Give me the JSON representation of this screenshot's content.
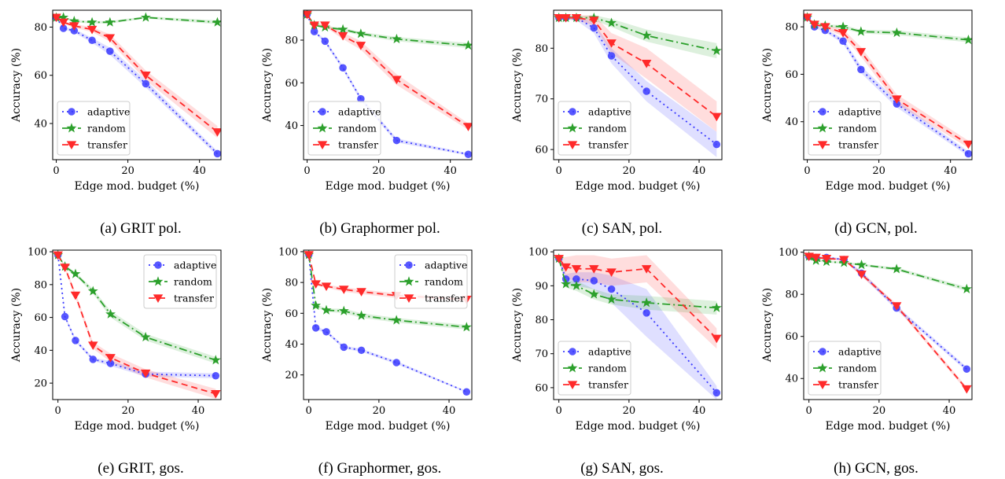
{
  "colors": {
    "adaptive": "#3b3bff",
    "random": "#2ca02c",
    "transfer": "#ff2a2a"
  },
  "legend_labels": [
    "adaptive",
    "random",
    "transfer"
  ],
  "chart_data": [
    {
      "type": "line",
      "caption": "(a) GRIT pol.",
      "xlabel": "Edge mod. budget (%)",
      "ylabel": "Accuracy (%)",
      "xlim": [
        -1,
        46
      ],
      "ylim": [
        25,
        87
      ],
      "xticks": [
        0,
        20,
        40
      ],
      "yticks": [
        40,
        60,
        80
      ],
      "legend_loc": "lower-left",
      "x": [
        0,
        2,
        5,
        10,
        15,
        25,
        45
      ],
      "series": [
        {
          "name": "adaptive",
          "values": [
            84,
            79.5,
            78.5,
            74.5,
            70,
            56.5,
            27.5
          ],
          "band": [
            0,
            0.5,
            0.8,
            1,
            1.5,
            1.5,
            1
          ]
        },
        {
          "name": "random",
          "values": [
            84,
            84,
            82.5,
            82,
            82,
            84,
            82
          ],
          "band": [
            0,
            0.3,
            0.5,
            0.5,
            0.5,
            0.5,
            0.8
          ]
        },
        {
          "name": "transfer",
          "values": [
            84,
            82,
            80.5,
            79,
            75.5,
            60,
            36.5
          ],
          "band": [
            0,
            0.5,
            0.8,
            1,
            1.5,
            2,
            2.5
          ]
        }
      ]
    },
    {
      "type": "line",
      "caption": "(b) Graphormer pol.",
      "xlabel": "Edge mod. budget (%)",
      "ylabel": "Accuracy (%)",
      "xlim": [
        -1,
        46
      ],
      "ylim": [
        24,
        94
      ],
      "xticks": [
        0,
        20,
        40
      ],
      "yticks": [
        40,
        60,
        80
      ],
      "legend_loc": "lower-left",
      "x": [
        0,
        2,
        5,
        10,
        15,
        25,
        45
      ],
      "series": [
        {
          "name": "adaptive",
          "values": [
            92,
            84,
            79.5,
            67,
            52.5,
            33,
            26.5
          ],
          "band": [
            0,
            0.5,
            0.8,
            1,
            1,
            1,
            0.5
          ]
        },
        {
          "name": "random",
          "values": [
            92,
            87,
            86,
            85,
            83,
            80.5,
            77.5
          ],
          "band": [
            0,
            0.5,
            0.5,
            0.8,
            0.8,
            1,
            1.2
          ]
        },
        {
          "name": "transfer",
          "values": [
            92,
            87,
            87,
            82,
            77.5,
            61.5,
            39.5
          ],
          "band": [
            0,
            0.5,
            0.8,
            1.5,
            2,
            2.5,
            1.5
          ]
        }
      ]
    },
    {
      "type": "line",
      "caption": "(c) SAN, pol.",
      "xlabel": "Edge mod. budget (%)",
      "ylabel": "Accuracy (%)",
      "xlim": [
        -1.5,
        46.5
      ],
      "ylim": [
        58,
        87.5
      ],
      "xticks": [
        0,
        20,
        40
      ],
      "yticks": [
        60,
        70,
        80
      ],
      "legend_loc": "lower-left",
      "x": [
        0,
        2,
        5,
        10,
        15,
        25,
        45
      ],
      "series": [
        {
          "name": "adaptive",
          "values": [
            86,
            86,
            86,
            84,
            78.5,
            71.5,
            61
          ],
          "band": [
            0,
            0.3,
            0.5,
            1,
            1.5,
            2,
            2.5
          ]
        },
        {
          "name": "random",
          "values": [
            86,
            86,
            86,
            86,
            85,
            82.5,
            79.5
          ],
          "band": [
            0,
            0.3,
            0.3,
            0.5,
            0.8,
            1.2,
            1.5
          ]
        },
        {
          "name": "transfer",
          "values": [
            86,
            86,
            86,
            85.5,
            81,
            77,
            66.5
          ],
          "band": [
            0,
            0.3,
            0.5,
            1,
            2,
            3,
            3
          ]
        }
      ]
    },
    {
      "type": "line",
      "caption": "(d) GCN, pol.",
      "xlabel": "Edge mod. budget (%)",
      "ylabel": "Accuracy (%)",
      "xlim": [
        -1,
        46
      ],
      "ylim": [
        24,
        87
      ],
      "xticks": [
        0,
        20,
        40
      ],
      "yticks": [
        40,
        60,
        80
      ],
      "legend_loc": "lower-left",
      "x": [
        0,
        2,
        5,
        10,
        15,
        25,
        45
      ],
      "series": [
        {
          "name": "adaptive",
          "values": [
            84,
            80,
            78.5,
            74,
            62,
            47.5,
            26.5
          ],
          "band": [
            0,
            0.5,
            0.8,
            1,
            1.5,
            1.5,
            1
          ]
        },
        {
          "name": "random",
          "values": [
            84,
            81,
            80.5,
            80,
            78,
            77.5,
            74.5
          ],
          "band": [
            0,
            0.5,
            0.5,
            0.8,
            0.8,
            1,
            1
          ]
        },
        {
          "name": "transfer",
          "values": [
            84,
            81,
            80,
            77.5,
            69.5,
            49.5,
            30.5
          ],
          "band": [
            0,
            0.5,
            0.8,
            1.5,
            2,
            2,
            1.5
          ]
        }
      ]
    },
    {
      "type": "line",
      "caption": "(e) GRIT, gos.",
      "xlabel": "Edge mod. budget (%)",
      "ylabel": "Accuracy (%)",
      "xlim": [
        -1.5,
        46.5
      ],
      "ylim": [
        10,
        101
      ],
      "xticks": [
        0,
        20,
        40
      ],
      "yticks": [
        20,
        40,
        60,
        80,
        100
      ],
      "legend_loc": "upper-right",
      "x": [
        0,
        2,
        5,
        10,
        15,
        25,
        45
      ],
      "series": [
        {
          "name": "adaptive",
          "values": [
            98,
            60.5,
            46,
            34.5,
            32,
            25.5,
            24.5
          ],
          "band": [
            0,
            1,
            1,
            1,
            1.5,
            1.5,
            1.5
          ]
        },
        {
          "name": "random",
          "values": [
            98,
            91,
            86.5,
            76,
            62,
            48,
            34
          ],
          "band": [
            0,
            1,
            1,
            1.5,
            2,
            2,
            2
          ]
        },
        {
          "name": "transfer",
          "values": [
            98,
            90.5,
            73.5,
            43,
            35.5,
            26,
            13.5
          ],
          "band": [
            0,
            1,
            1.5,
            2,
            2.5,
            2.5,
            3
          ]
        }
      ]
    },
    {
      "type": "line",
      "caption": "(f) Graphormer, gos.",
      "xlabel": "Edge mod. budget (%)",
      "ylabel": "Accuracy (%)",
      "xlim": [
        -1.5,
        46.5
      ],
      "ylim": [
        4,
        101
      ],
      "xticks": [
        0,
        20,
        40
      ],
      "yticks": [
        20,
        40,
        60,
        80,
        100
      ],
      "legend_loc": "upper-right",
      "x": [
        0,
        2,
        5,
        10,
        15,
        25,
        45
      ],
      "series": [
        {
          "name": "adaptive",
          "values": [
            98,
            50.5,
            48,
            38,
            36,
            28,
            9
          ],
          "band": [
            0,
            1,
            1,
            1,
            1,
            1,
            0.5
          ]
        },
        {
          "name": "random",
          "values": [
            98,
            65,
            62,
            61.5,
            58.5,
            55.5,
            51
          ],
          "band": [
            0,
            1,
            1,
            1.5,
            1.5,
            1.5,
            1.5
          ]
        },
        {
          "name": "transfer",
          "values": [
            98,
            79,
            77.5,
            75.5,
            74,
            71.5,
            69
          ],
          "band": [
            0,
            1,
            1,
            1.5,
            1.5,
            1.5,
            1.5
          ]
        }
      ]
    },
    {
      "type": "line",
      "caption": "(g) SAN, gos.",
      "xlabel": "Edge mod. budget (%)",
      "ylabel": "Accuracy (%)",
      "xlim": [
        -1.5,
        46.5
      ],
      "ylim": [
        56.5,
        100.5
      ],
      "xticks": [
        0,
        20,
        40
      ],
      "yticks": [
        60,
        70,
        80,
        90,
        100
      ],
      "legend_loc": "lower-left",
      "x": [
        0,
        2,
        5,
        10,
        15,
        25,
        45
      ],
      "series": [
        {
          "name": "adaptive",
          "values": [
            98,
            92,
            92,
            91.5,
            89,
            82,
            58.5
          ],
          "band": [
            0,
            1.5,
            2,
            2.5,
            4,
            7,
            2
          ]
        },
        {
          "name": "random",
          "values": [
            98,
            90.5,
            90,
            87.5,
            86,
            85,
            83.5
          ],
          "band": [
            0,
            1,
            1.5,
            1.5,
            1.5,
            2,
            2
          ]
        },
        {
          "name": "transfer",
          "values": [
            98,
            95.5,
            95,
            95,
            94,
            95,
            74.5
          ],
          "band": [
            0,
            3,
            4,
            4,
            4,
            4,
            3
          ]
        }
      ]
    },
    {
      "type": "line",
      "caption": "(h) GCN, gos.",
      "xlabel": "Edge mod. budget (%)",
      "ylabel": "Accuracy (%)",
      "xlim": [
        -1.5,
        46.5
      ],
      "ylim": [
        30,
        101
      ],
      "xticks": [
        0,
        20,
        40
      ],
      "yticks": [
        40,
        60,
        80,
        100
      ],
      "legend_loc": "lower-left",
      "x": [
        0,
        2,
        5,
        10,
        15,
        25,
        45
      ],
      "series": [
        {
          "name": "adaptive",
          "values": [
            98,
            97.5,
            97.5,
            96.5,
            90,
            73.5,
            44.5
          ],
          "band": [
            0,
            0.5,
            0.5,
            0.5,
            1,
            1,
            1
          ]
        },
        {
          "name": "random",
          "values": [
            98,
            96,
            95.5,
            95,
            94,
            92,
            82.5
          ],
          "band": [
            0,
            0.3,
            0.5,
            0.5,
            0.5,
            0.8,
            1
          ]
        },
        {
          "name": "transfer",
          "values": [
            98,
            97.5,
            97,
            96.5,
            89.5,
            74.5,
            35
          ],
          "band": [
            0,
            0.5,
            0.5,
            0.5,
            1,
            1,
            1
          ]
        }
      ]
    }
  ]
}
